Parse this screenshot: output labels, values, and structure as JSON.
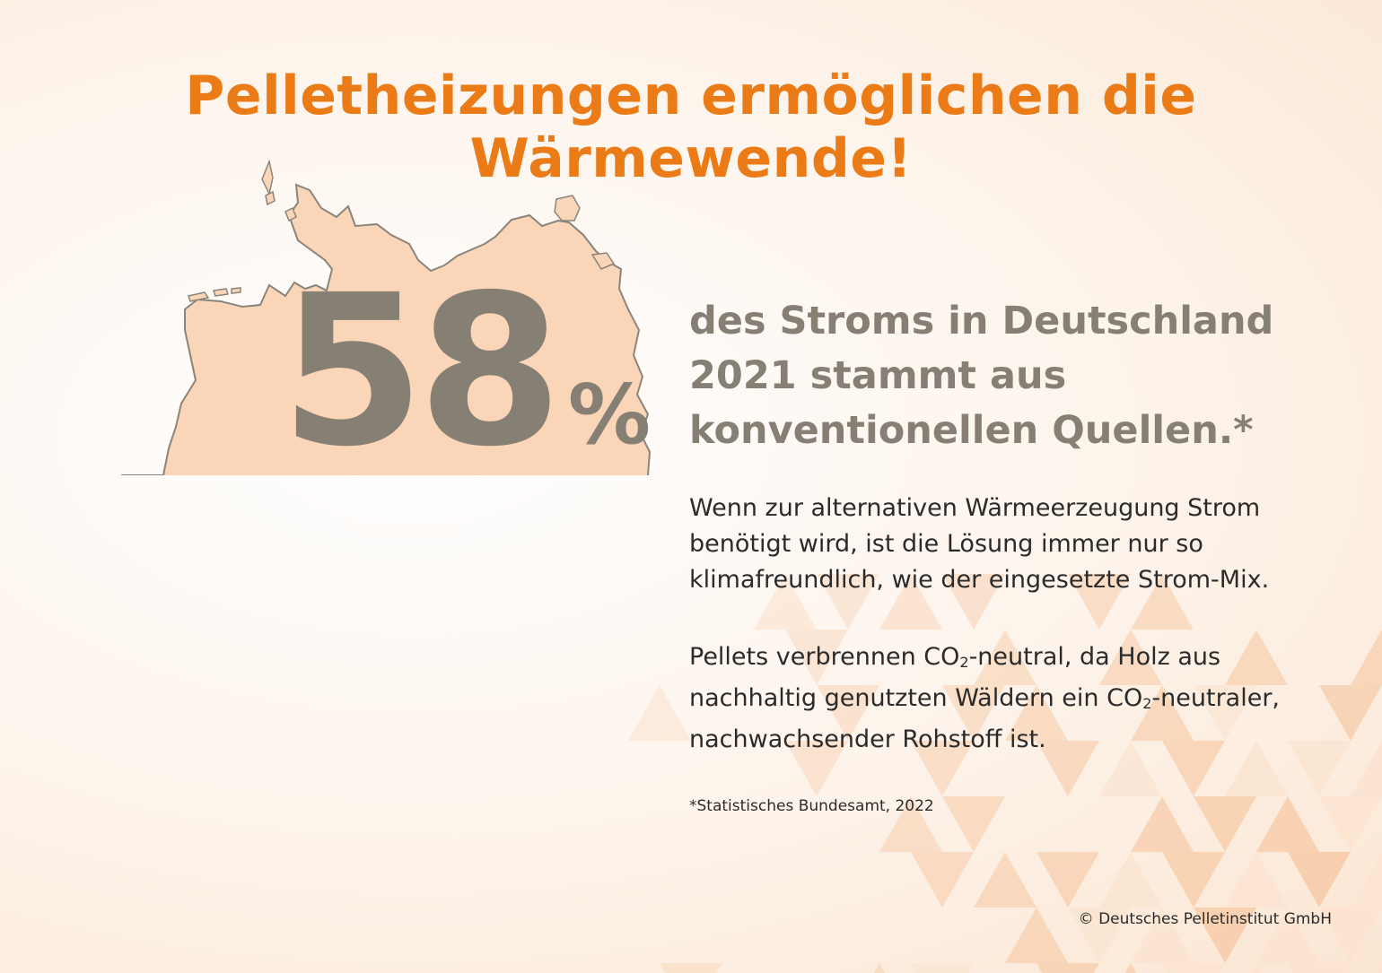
{
  "title": "Pelletheizungen ermöglichen die Wärmewende!",
  "statistic": {
    "value": "58",
    "unit": "%"
  },
  "headline": "des Stroms in Deutschland 2021 stammt aus konventionellen Quellen.*",
  "paragraph_1": "Wenn zur alternativen Wärmeerzeugung Strom benötigt wird, ist die Lösung immer nur so klimafreundlich, wie der eingesetzte Strom-Mix.",
  "paragraph_2": {
    "part_1": "Pellets verbrennen CO",
    "sub_1": "2",
    "part_2": "-neutral, da Holz aus nachhaltig genutzten Wäldern ein CO",
    "sub_2": "2",
    "part_3": "-neutraler, nachwachsender Rohstoff ist."
  },
  "footnote": "*Statistisches Bundesamt, 2022",
  "copyright": "© Deutsches Pelletinstitut GmbH",
  "map": {
    "filled_share": 0.58,
    "country_icon": "germany-map-icon"
  },
  "colors": {
    "title_orange": "#ea7b16",
    "stat_gray": "#857f74",
    "map_peach": "#fbd5b7",
    "map_hatch_bg": "#b5ae9f",
    "map_hatch_line": "#8d877b",
    "map_outline": "#8a857c",
    "triangle_light": "#fbe3cf",
    "triangle_mid": "#f7c9a5"
  }
}
